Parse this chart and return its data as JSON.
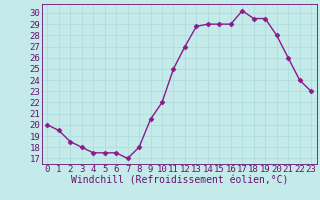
{
  "x": [
    0,
    1,
    2,
    3,
    4,
    5,
    6,
    7,
    8,
    9,
    10,
    11,
    12,
    13,
    14,
    15,
    16,
    17,
    18,
    19,
    20,
    21,
    22,
    23
  ],
  "y": [
    20,
    19.5,
    18.5,
    18,
    17.5,
    17.5,
    17.5,
    17,
    18,
    20.5,
    22,
    25,
    27,
    28.8,
    29,
    29,
    29,
    30.2,
    29.5,
    29.5,
    28,
    26,
    24,
    23
  ],
  "line_color": "#8b1a8b",
  "marker": "D",
  "marker_size": 2.5,
  "xlabel": "Windchill (Refroidissement éolien,°C)",
  "xlabel_fontsize": 7,
  "xlim": [
    -0.5,
    23.5
  ],
  "ylim": [
    16.5,
    30.8
  ],
  "yticks": [
    17,
    18,
    19,
    20,
    21,
    22,
    23,
    24,
    25,
    26,
    27,
    28,
    29,
    30
  ],
  "xticks": [
    0,
    1,
    2,
    3,
    4,
    5,
    6,
    7,
    8,
    9,
    10,
    11,
    12,
    13,
    14,
    15,
    16,
    17,
    18,
    19,
    20,
    21,
    22,
    23
  ],
  "grid_color": "#aadddd",
  "bg_color": "#c5eaea",
  "tick_color": "#6a1070",
  "spine_color": "#6a1070",
  "tick_fontsize": 6.5,
  "line_width": 1.0
}
